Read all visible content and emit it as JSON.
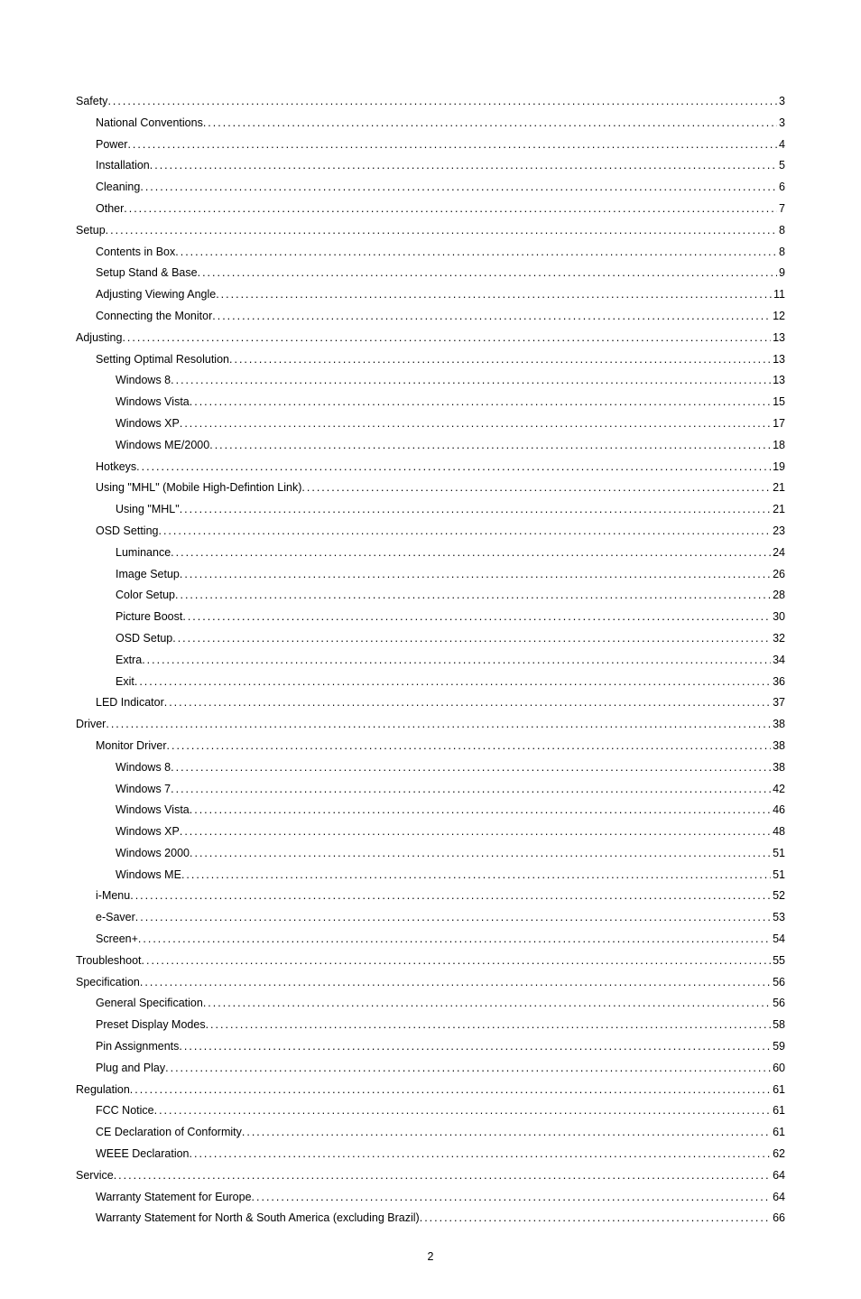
{
  "toc": [
    {
      "title": "Safety",
      "page": "3",
      "indent": 0
    },
    {
      "title": "National Conventions",
      "page": "3",
      "indent": 1
    },
    {
      "title": "Power",
      "page": "4",
      "indent": 1
    },
    {
      "title": "Installation",
      "page": "5",
      "indent": 1
    },
    {
      "title": "Cleaning",
      "page": "6",
      "indent": 1
    },
    {
      "title": "Other",
      "page": "7",
      "indent": 1
    },
    {
      "title": "Setup",
      "page": "8",
      "indent": 0
    },
    {
      "title": "Contents in Box",
      "page": "8",
      "indent": 1
    },
    {
      "title": "Setup Stand & Base",
      "page": "9",
      "indent": 1
    },
    {
      "title": "Adjusting Viewing Angle",
      "page": "11",
      "indent": 1
    },
    {
      "title": "Connecting the Monitor",
      "page": "12",
      "indent": 1
    },
    {
      "title": "Adjusting",
      "page": " 13",
      "indent": 0
    },
    {
      "title": "Setting Optimal Resolution",
      "page": "13",
      "indent": 1
    },
    {
      "title": "Windows 8",
      "page": " 13",
      "indent": 2
    },
    {
      "title": "Windows Vista",
      "page": "15",
      "indent": 2
    },
    {
      "title": "Windows XP",
      "page": "17",
      "indent": 2
    },
    {
      "title": "Windows ME/2000",
      "page": "18",
      "indent": 2
    },
    {
      "title": "Hotkeys",
      "page": "19",
      "indent": 1
    },
    {
      "title": "Using \"MHL\" (Mobile High-Defintion Link) ",
      "page": "21",
      "indent": 1
    },
    {
      "title": "Using \"MHL\"",
      "page": " 21",
      "indent": 2
    },
    {
      "title": "OSD Setting",
      "page": "23",
      "indent": 1
    },
    {
      "title": "Luminance",
      "page": "24",
      "indent": 2
    },
    {
      "title": "Image Setup",
      "page": "26",
      "indent": 2
    },
    {
      "title": "Color Setup",
      "page": "28",
      "indent": 2
    },
    {
      "title": "Picture Boost",
      "page": "30",
      "indent": 2
    },
    {
      "title": "OSD Setup",
      "page": "32",
      "indent": 2
    },
    {
      "title": "Extra",
      "page": "34",
      "indent": 2
    },
    {
      "title": "Exit",
      "page": "36",
      "indent": 2
    },
    {
      "title": "LED Indicator",
      "page": "37",
      "indent": 1
    },
    {
      "title": "Driver",
      "page": "38",
      "indent": 0
    },
    {
      "title": "Monitor Driver",
      "page": "38",
      "indent": 1
    },
    {
      "title": "Windows 8",
      "page": " 38",
      "indent": 2
    },
    {
      "title": "Windows 7",
      "page": "42",
      "indent": 2
    },
    {
      "title": "Windows Vista",
      "page": "46",
      "indent": 2
    },
    {
      "title": "Windows XP",
      "page": "48",
      "indent": 2
    },
    {
      "title": "Windows 2000",
      "page": " 51",
      "indent": 2
    },
    {
      "title": "Windows ME",
      "page": " 51",
      "indent": 2
    },
    {
      "title": "i-Menu",
      "page": "52",
      "indent": 1
    },
    {
      "title": "e-Saver",
      "page": "53",
      "indent": 1
    },
    {
      "title": "Screen+",
      "page": "54",
      "indent": 1
    },
    {
      "title": "Troubleshoot",
      "page": "55",
      "indent": 0
    },
    {
      "title": "Specification",
      "page": "56",
      "indent": 0
    },
    {
      "title": "General Specification",
      "page": "56",
      "indent": 1
    },
    {
      "title": "Preset Display Modes",
      "page": "58",
      "indent": 1
    },
    {
      "title": "Pin Assignments",
      "page": "59",
      "indent": 1
    },
    {
      "title": "Plug and Play",
      "page": "60",
      "indent": 1
    },
    {
      "title": "Regulation",
      "page": "61",
      "indent": 0
    },
    {
      "title": "FCC Notice",
      "page": "61",
      "indent": 1
    },
    {
      "title": "CE Declaration of Conformity",
      "page": "61",
      "indent": 1
    },
    {
      "title": "WEEE Declaration",
      "page": "62",
      "indent": 1
    },
    {
      "title": "Service",
      "page": "64",
      "indent": 0
    },
    {
      "title": "Warranty Statement for Europe",
      "page": "64",
      "indent": 1
    },
    {
      "title": "Warranty Statement for North & South America (excluding Brazil)",
      "page": "66",
      "indent": 1
    }
  ],
  "pageNumber": "2"
}
